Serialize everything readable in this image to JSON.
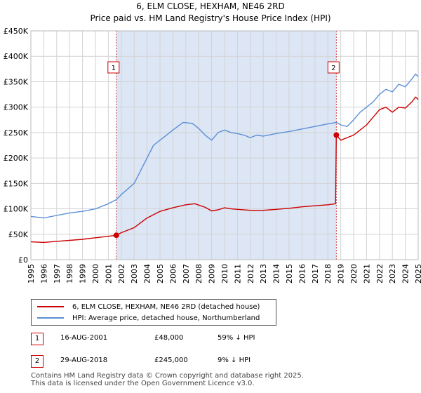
{
  "title_line1": "6, ELM CLOSE, HEXHAM, NE46 2RD",
  "title_line2": "Price paid vs. HM Land Registry's House Price Index (HPI)",
  "legend": {
    "property": "6, ELM CLOSE, HEXHAM, NE46 2RD (detached house)",
    "hpi": "HPI: Average price, detached house, Northumberland"
  },
  "transactions": [
    {
      "marker": "1",
      "date": "16-AUG-2001",
      "price": "£48,000",
      "hpi_diff": "59% ↓ HPI"
    },
    {
      "marker": "2",
      "date": "29-AUG-2018",
      "price": "£245,000",
      "hpi_diff": "9% ↓ HPI"
    }
  ],
  "footer_line1": "Contains HM Land Registry data © Crown copyright and database right 2025.",
  "footer_line2": "This data is licensed under the Open Government Licence v3.0.",
  "colors": {
    "property": "#cc0000",
    "hpi": "#5b8fd6",
    "shade": "#dce6f5",
    "grid": "#d3d3d3"
  },
  "chart_data": {
    "type": "line",
    "title": "6, ELM CLOSE, HEXHAM, NE46 2RD",
    "subtitle": "Price paid vs. HM Land Registry's House Price Index (HPI)",
    "xlabel": "",
    "ylabel": "",
    "xlim": [
      1995.0,
      2025.0
    ],
    "ylim": [
      0,
      450000
    ],
    "yticks": [
      0,
      50000,
      100000,
      150000,
      200000,
      250000,
      300000,
      350000,
      400000,
      450000
    ],
    "ytick_labels": [
      "£0",
      "£50K",
      "£100K",
      "£150K",
      "£200K",
      "£250K",
      "£300K",
      "£350K",
      "£400K",
      "£450K"
    ],
    "xticks": [
      1995,
      1996,
      1997,
      1998,
      1999,
      2000,
      2001,
      2002,
      2003,
      2004,
      2005,
      2006,
      2007,
      2008,
      2009,
      2010,
      2011,
      2012,
      2013,
      2014,
      2015,
      2016,
      2017,
      2018,
      2019,
      2020,
      2021,
      2022,
      2023,
      2024,
      2025
    ],
    "grid": true,
    "shaded_period": [
      2001.62,
      2018.66
    ],
    "sales": [
      {
        "label": "1",
        "x": 2001.62,
        "y": 48000
      },
      {
        "label": "2",
        "x": 2018.66,
        "y": 245000
      }
    ],
    "series": [
      {
        "name": "6, ELM CLOSE, HEXHAM, NE46 2RD (detached house)",
        "points": [
          [
            1995.0,
            35000
          ],
          [
            1996.0,
            34000
          ],
          [
            1997.0,
            36000
          ],
          [
            1998.0,
            38000
          ],
          [
            1999.0,
            40000
          ],
          [
            2000.0,
            43000
          ],
          [
            2001.0,
            46000
          ],
          [
            2001.62,
            48000
          ],
          [
            2002.0,
            53000
          ],
          [
            2003.0,
            63000
          ],
          [
            2004.0,
            82000
          ],
          [
            2005.0,
            95000
          ],
          [
            2006.0,
            102000
          ],
          [
            2007.0,
            108000
          ],
          [
            2007.7,
            110000
          ],
          [
            2008.5,
            103000
          ],
          [
            2009.0,
            96000
          ],
          [
            2009.5,
            98000
          ],
          [
            2010.0,
            102000
          ],
          [
            2010.5,
            100000
          ],
          [
            2011.0,
            99000
          ],
          [
            2012.0,
            97000
          ],
          [
            2013.0,
            97000
          ],
          [
            2014.0,
            99000
          ],
          [
            2015.0,
            101000
          ],
          [
            2016.0,
            104000
          ],
          [
            2017.0,
            106000
          ],
          [
            2018.0,
            108000
          ],
          [
            2018.6,
            110000
          ],
          [
            2018.66,
            245000
          ],
          [
            2019.0,
            235000
          ],
          [
            2019.5,
            240000
          ],
          [
            2020.0,
            245000
          ],
          [
            2020.5,
            255000
          ],
          [
            2021.0,
            265000
          ],
          [
            2021.5,
            280000
          ],
          [
            2022.0,
            295000
          ],
          [
            2022.5,
            300000
          ],
          [
            2023.0,
            290000
          ],
          [
            2023.5,
            300000
          ],
          [
            2024.0,
            298000
          ],
          [
            2024.5,
            310000
          ],
          [
            2024.8,
            320000
          ],
          [
            2025.0,
            315000
          ]
        ]
      },
      {
        "name": "HPI: Average price, detached house, Northumberland",
        "points": [
          [
            1995.0,
            85000
          ],
          [
            1996.0,
            82000
          ],
          [
            1997.0,
            87000
          ],
          [
            1998.0,
            92000
          ],
          [
            1999.0,
            95000
          ],
          [
            2000.0,
            100000
          ],
          [
            2001.0,
            110000
          ],
          [
            2001.62,
            118000
          ],
          [
            2002.0,
            128000
          ],
          [
            2003.0,
            150000
          ],
          [
            2004.0,
            200000
          ],
          [
            2004.5,
            225000
          ],
          [
            2005.0,
            235000
          ],
          [
            2006.0,
            255000
          ],
          [
            2006.8,
            270000
          ],
          [
            2007.5,
            268000
          ],
          [
            2008.0,
            258000
          ],
          [
            2008.5,
            245000
          ],
          [
            2009.0,
            235000
          ],
          [
            2009.5,
            250000
          ],
          [
            2010.0,
            255000
          ],
          [
            2010.5,
            250000
          ],
          [
            2011.0,
            248000
          ],
          [
            2011.5,
            245000
          ],
          [
            2012.0,
            240000
          ],
          [
            2012.5,
            245000
          ],
          [
            2013.0,
            243000
          ],
          [
            2014.0,
            248000
          ],
          [
            2015.0,
            252000
          ],
          [
            2016.0,
            257000
          ],
          [
            2017.0,
            262000
          ],
          [
            2018.0,
            267000
          ],
          [
            2018.66,
            270000
          ],
          [
            2019.0,
            265000
          ],
          [
            2019.5,
            262000
          ],
          [
            2020.0,
            275000
          ],
          [
            2020.5,
            290000
          ],
          [
            2021.0,
            300000
          ],
          [
            2021.5,
            310000
          ],
          [
            2022.0,
            325000
          ],
          [
            2022.5,
            335000
          ],
          [
            2023.0,
            330000
          ],
          [
            2023.5,
            345000
          ],
          [
            2024.0,
            340000
          ],
          [
            2024.5,
            355000
          ],
          [
            2024.8,
            365000
          ],
          [
            2025.0,
            360000
          ]
        ]
      }
    ]
  }
}
